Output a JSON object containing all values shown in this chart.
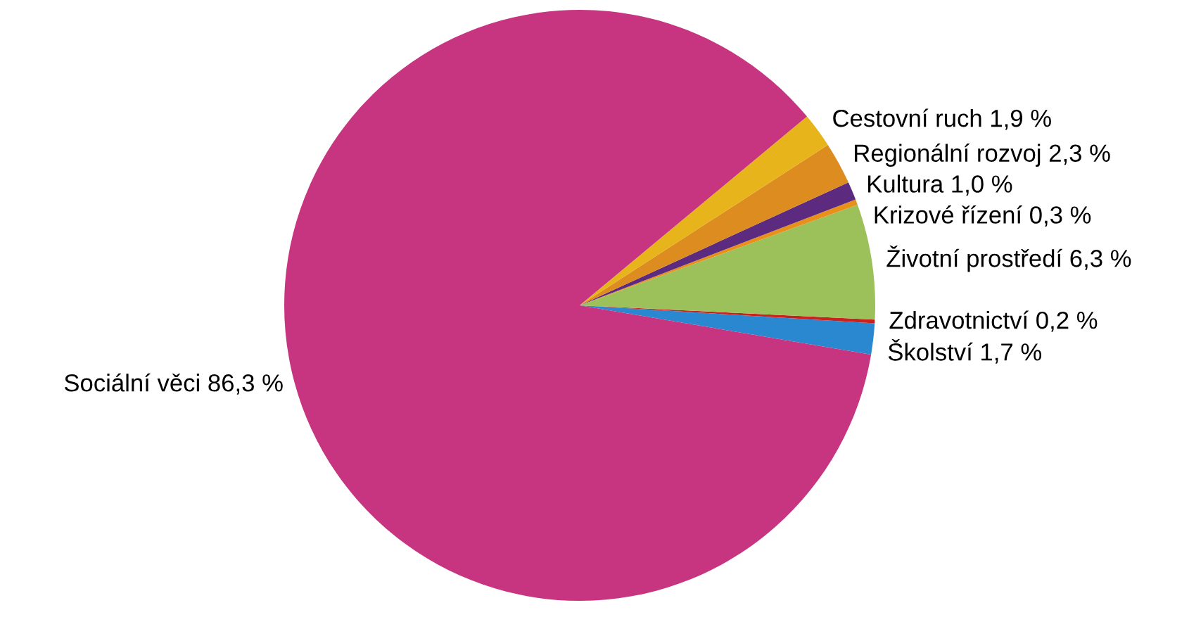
{
  "chart_data": {
    "type": "pie",
    "categories": [
      "Školství",
      "Zdravotnictví",
      "Životní prostředí",
      "Krizové řízení",
      "Kultura",
      "Regionální rozvoj",
      "Cestovní ruch",
      "Sociální věci"
    ],
    "values": [
      1.7,
      0.2,
      6.3,
      0.3,
      1.0,
      2.3,
      1.9,
      86.3
    ],
    "value_labels": [
      "1,7 %",
      "0,2 %",
      "6,3 %",
      "0,3 %",
      "1,0 %",
      "2,3 %",
      "1,9 %",
      "86,3 %"
    ],
    "colors": [
      "#2a88d0",
      "#c9211e",
      "#9dc15a",
      "#e8901a",
      "#5c2a7e",
      "#dd8c1f",
      "#e8b41b",
      "#c73580"
    ],
    "legend": false
  }
}
